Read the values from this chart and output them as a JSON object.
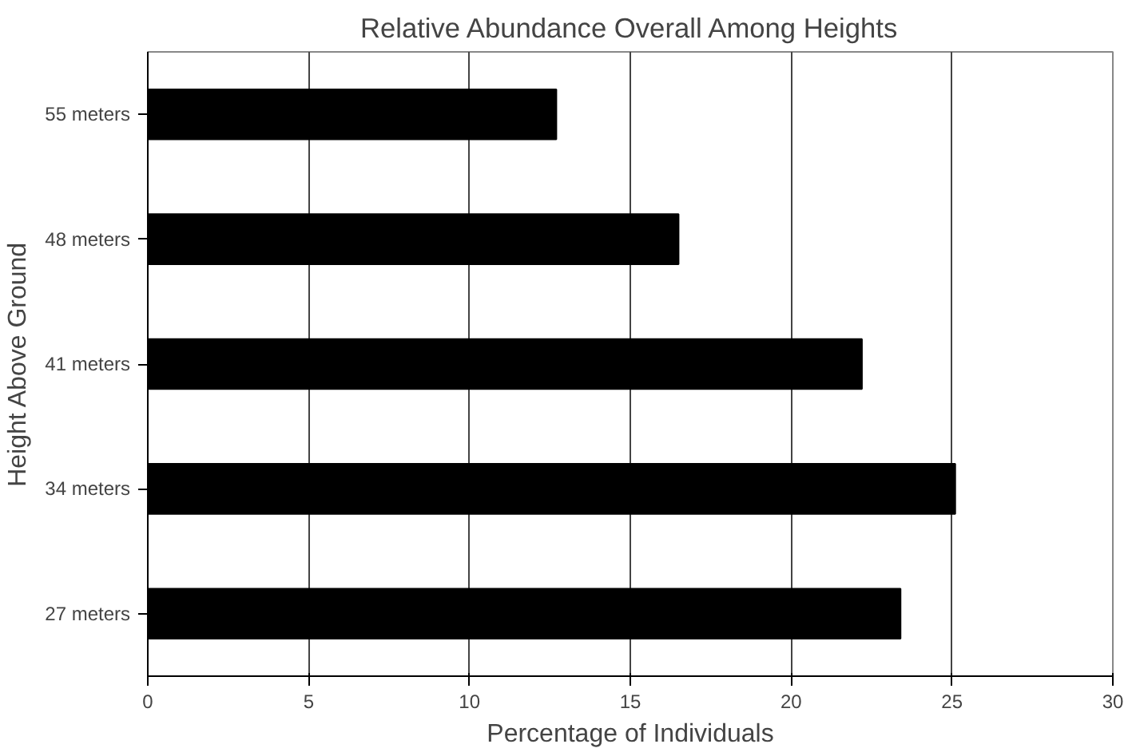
{
  "chart_data": {
    "type": "bar",
    "orientation": "horizontal",
    "title": "Relative Abundance Overall Among Heights",
    "xlabel": "Percentage of Individuals",
    "ylabel": "Height Above Ground",
    "categories": [
      "55 meters",
      "48 meters",
      "41 meters",
      "34 meters",
      "27 meters"
    ],
    "values": [
      12.7,
      16.5,
      22.2,
      25.1,
      23.4
    ],
    "color": "#000000",
    "xlim": [
      0,
      30
    ],
    "xticks": [
      0,
      5,
      10,
      15,
      20,
      25,
      30
    ],
    "grid": "x"
  }
}
